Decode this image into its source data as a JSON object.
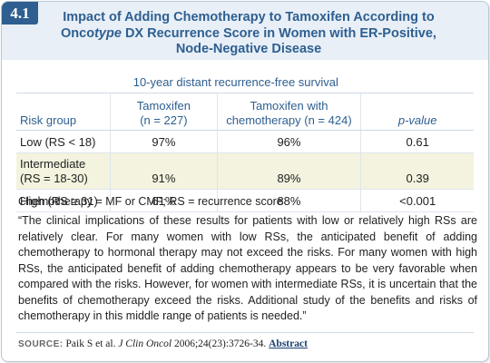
{
  "badge": "4.1",
  "title": {
    "line1": "Impact of Adding Chemotherapy to Tamoxifen According to",
    "line2_pre": "Onco",
    "line2_italic": "type",
    "line2_post": " DX Recurrence Score in Women with ER-Positive,",
    "line3": "Node-Negative Disease"
  },
  "table": {
    "span_header": "10-year distant recurrence-free survival",
    "columns": {
      "risk": "Risk group",
      "tam_line1": "Tamoxifen",
      "tam_line2": "(n = 227)",
      "chemo_line1": "Tamoxifen with",
      "chemo_line2": "chemotherapy (n = 424)",
      "p": "p-value"
    },
    "rows": [
      {
        "group": "Low (RS < 18)",
        "tam": "97%",
        "chemo": "96%",
        "p": "0.61"
      },
      {
        "group_line1": "Intermediate",
        "group_line2": "(RS = 18-30)",
        "tam": "91%",
        "chemo": "89%",
        "p": "0.39"
      },
      {
        "group": "High (RS ≥ 31)",
        "tam": "61%",
        "chemo": "88%",
        "p": "<0.001"
      }
    ]
  },
  "footnote": "Chemotherapy = MF or CMF; RS = recurrence score",
  "quote": "“The clinical implications of these results for patients with low or relatively high RSs are relatively clear. For many women with low RSs, the anticipated benefit of adding chemotherapy to hormonal therapy may not exceed the risks. For many women with high RSs, the anticipated benefit of adding chemotherapy appears to be very favorable when compared with the risks. However, for women with intermediate RSs, it is uncertain that the benefits of chemotherapy exceed the risks. Additional study of the benefits and risks of chemotherapy in this middle range of patients is needed.”",
  "source": {
    "label": "SOURCE:",
    "pre": " Paik S et al. ",
    "journal": "J Clin Oncol",
    "post": " 2006;24(23):3726-34. ",
    "link": "Abstract"
  },
  "colors": {
    "accent": "#2e5f90",
    "header_bg": "#e8eff7",
    "shade": "#f3f3df"
  }
}
